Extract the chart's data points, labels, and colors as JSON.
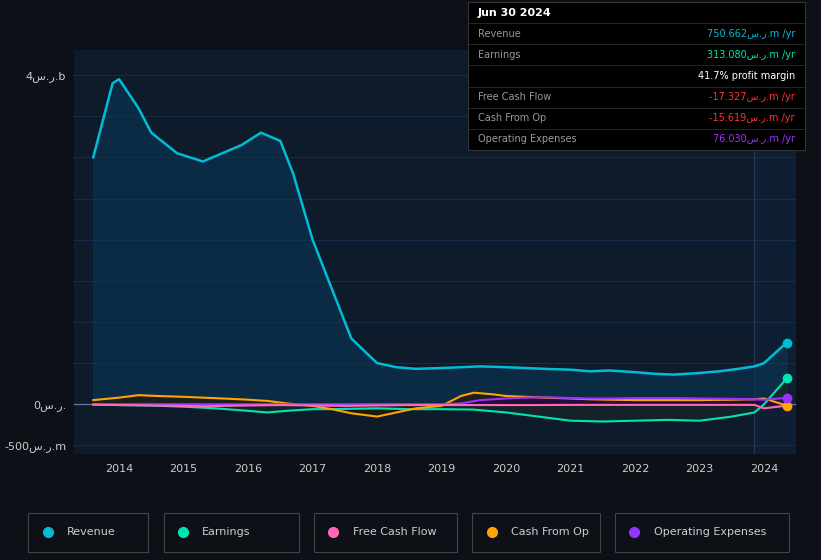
{
  "bg_color": "#0d1117",
  "plot_bg_color": "#0d1b2a",
  "revenue_color": "#00bcd4",
  "revenue_fill": "#0a3a5c",
  "earnings_color": "#00e5b0",
  "earnings_fill": "#1a2a2a",
  "fcf_color": "#ff69b4",
  "cfo_color": "#ffa500",
  "cfo_fill": "#2a1a00",
  "opex_color": "#9933ff",
  "opex_fill": "#2a0a3a",
  "grid_color": "#1a3050",
  "zero_line_color": "#555577",
  "text_color": "#cccccc",
  "table_bg": "#000000",
  "table_border": "#333333",
  "revenue_x": [
    2013.6,
    2013.9,
    2014.0,
    2014.3,
    2014.5,
    2014.9,
    2015.3,
    2015.6,
    2015.9,
    2016.0,
    2016.2,
    2016.5,
    2016.7,
    2017.0,
    2017.3,
    2017.6,
    2018.0,
    2018.3,
    2018.6,
    2019.0,
    2019.3,
    2019.6,
    2020.0,
    2020.3,
    2020.6,
    2021.0,
    2021.3,
    2021.6,
    2022.0,
    2022.3,
    2022.6,
    2023.0,
    2023.3,
    2023.6,
    2023.85,
    2024.0,
    2024.35
  ],
  "revenue_y": [
    3000,
    3900,
    3950,
    3600,
    3300,
    3050,
    2950,
    3050,
    3150,
    3200,
    3300,
    3200,
    2800,
    2000,
    1400,
    800,
    500,
    450,
    430,
    440,
    450,
    460,
    450,
    440,
    430,
    420,
    400,
    410,
    390,
    370,
    360,
    380,
    400,
    430,
    460,
    500,
    750
  ],
  "earnings_x": [
    2013.6,
    2014.0,
    2014.5,
    2015.0,
    2015.5,
    2016.0,
    2016.3,
    2016.6,
    2017.0,
    2017.3,
    2017.6,
    2018.0,
    2018.5,
    2019.0,
    2019.5,
    2020.0,
    2020.3,
    2020.6,
    2021.0,
    2021.5,
    2022.0,
    2022.5,
    2023.0,
    2023.5,
    2023.85,
    2024.0,
    2024.35
  ],
  "earnings_y": [
    -5,
    -10,
    -15,
    -30,
    -50,
    -80,
    -100,
    -80,
    -60,
    -60,
    -55,
    -50,
    -60,
    -60,
    -65,
    -100,
    -130,
    -160,
    -200,
    -210,
    -200,
    -190,
    -200,
    -150,
    -100,
    0,
    313
  ],
  "fcf_x": [
    2013.6,
    2014.0,
    2014.5,
    2015.0,
    2015.3,
    2015.6,
    2016.0,
    2016.5,
    2017.0,
    2017.5,
    2018.0,
    2018.5,
    2019.0,
    2019.5,
    2020.0,
    2020.5,
    2021.0,
    2021.5,
    2022.0,
    2022.5,
    2023.0,
    2023.5,
    2023.85,
    2024.0,
    2024.35
  ],
  "fcf_y": [
    -5,
    -10,
    -15,
    -20,
    -25,
    -20,
    -15,
    -10,
    -15,
    -20,
    -15,
    -10,
    -10,
    -10,
    -10,
    -10,
    -8,
    -8,
    -8,
    -8,
    -8,
    -8,
    -8,
    -50,
    -17
  ],
  "cfo_x": [
    2013.6,
    2014.0,
    2014.3,
    2014.6,
    2015.0,
    2015.3,
    2015.6,
    2016.0,
    2016.3,
    2016.6,
    2017.0,
    2017.3,
    2017.6,
    2018.0,
    2018.3,
    2018.6,
    2019.0,
    2019.3,
    2019.5,
    2019.8,
    2020.0,
    2020.3,
    2020.6,
    2021.0,
    2021.3,
    2021.6,
    2022.0,
    2022.5,
    2023.0,
    2023.5,
    2023.85,
    2024.0,
    2024.35
  ],
  "cfo_y": [
    50,
    80,
    110,
    100,
    90,
    80,
    70,
    55,
    40,
    10,
    -20,
    -60,
    -110,
    -150,
    -100,
    -50,
    -20,
    100,
    140,
    120,
    100,
    90,
    80,
    70,
    60,
    55,
    50,
    50,
    50,
    55,
    60,
    70,
    -16
  ],
  "opex_x": [
    2013.6,
    2014.0,
    2014.5,
    2015.0,
    2015.5,
    2016.0,
    2016.5,
    2017.0,
    2017.5,
    2018.0,
    2018.5,
    2019.0,
    2019.3,
    2019.6,
    2020.0,
    2020.3,
    2020.6,
    2021.0,
    2021.3,
    2021.6,
    2022.0,
    2022.3,
    2022.6,
    2023.0,
    2023.5,
    2023.85,
    2024.0,
    2024.35
  ],
  "opex_y": [
    0,
    0,
    0,
    0,
    0,
    0,
    0,
    0,
    0,
    0,
    0,
    0,
    10,
    50,
    70,
    80,
    85,
    75,
    70,
    70,
    75,
    75,
    75,
    70,
    65,
    60,
    55,
    76
  ],
  "ymin": -600,
  "ymax": 4300,
  "xmin": 2013.3,
  "xmax": 2024.5,
  "yticks": [
    -500,
    0,
    4000
  ],
  "ytick_labels": [
    "-500س.ر.m",
    "0س.ر.",
    "4س.ر.b"
  ],
  "xticks": [
    2014,
    2015,
    2016,
    2017,
    2018,
    2019,
    2020,
    2021,
    2022,
    2023,
    2024
  ],
  "vline_x": 2023.85,
  "legend_items": [
    {
      "label": "Revenue",
      "color": "#00bcd4"
    },
    {
      "label": "Earnings",
      "color": "#00e5b0"
    },
    {
      "label": "Free Cash Flow",
      "color": "#ff69b4"
    },
    {
      "label": "Cash From Op",
      "color": "#ffa500"
    },
    {
      "label": "Operating Expenses",
      "color": "#9933ff"
    }
  ],
  "table_rows": [
    {
      "label": "Jun 30 2024",
      "value": "",
      "label_color": "#ffffff",
      "value_color": "#ffffff",
      "bold": true
    },
    {
      "label": "Revenue",
      "value": "750.662س.ر.m /yr",
      "label_color": "#999999",
      "value_color": "#00bcd4",
      "bold": false
    },
    {
      "label": "Earnings",
      "value": "313.080س.ر.m /yr",
      "label_color": "#999999",
      "value_color": "#00e5b0",
      "bold": false
    },
    {
      "label": "",
      "value": "41.7% profit margin",
      "label_color": "#999999",
      "value_color": "#ffffff",
      "bold": false
    },
    {
      "label": "Free Cash Flow",
      "value": "-17.327س.ر.m /yr",
      "label_color": "#999999",
      "value_color": "#ff3333",
      "bold": false
    },
    {
      "label": "Cash From Op",
      "value": "-15.619س.ر.m /yr",
      "label_color": "#999999",
      "value_color": "#ff3333",
      "bold": false
    },
    {
      "label": "Operating Expenses",
      "value": "76.030س.ر.m /yr",
      "label_color": "#999999",
      "value_color": "#9933ff",
      "bold": false
    }
  ]
}
